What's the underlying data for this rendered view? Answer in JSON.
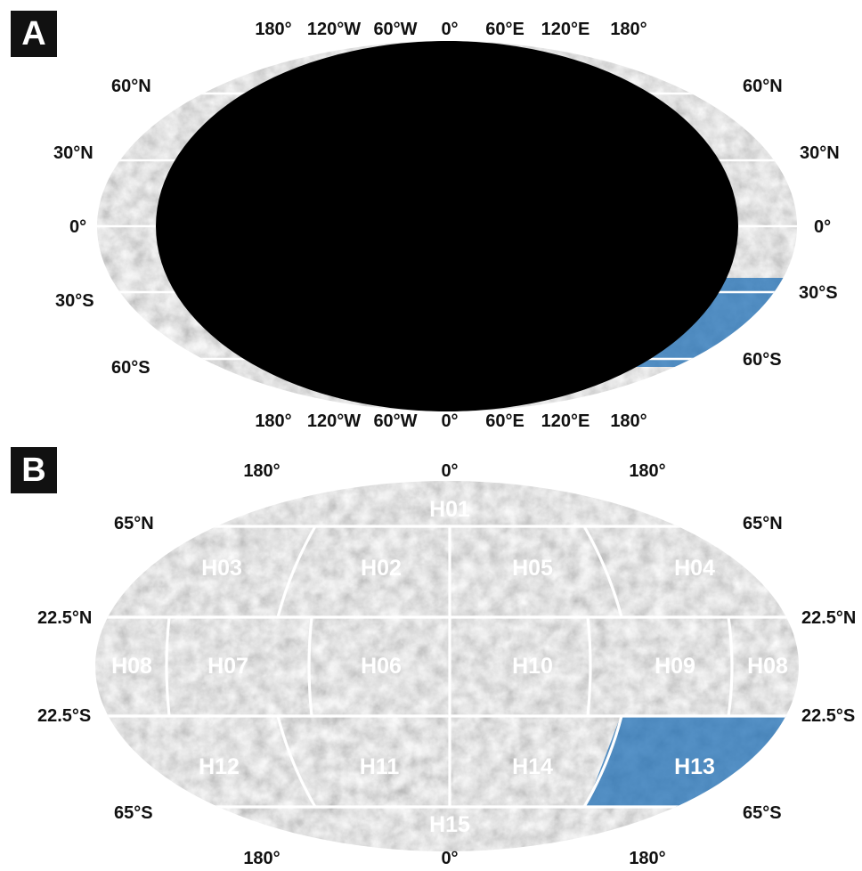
{
  "panel_a": {
    "badge": "A",
    "top_longitude_labels": [
      "180°",
      "120°W",
      "60°W",
      "0°",
      "60°E",
      "120°E",
      "180°"
    ],
    "bottom_longitude_labels": [
      "180°",
      "120°W",
      "60°W",
      "0°",
      "60°E",
      "120°E",
      "180°"
    ],
    "left_latitude_labels": [
      "60°N",
      "30°N",
      "0°",
      "30°S",
      "60°S"
    ],
    "right_latitude_labels": [
      "60°N",
      "30°N",
      "0°",
      "30°S",
      "60°S"
    ],
    "highlight_color": "#1f6fb5"
  },
  "panel_b": {
    "badge": "B",
    "top_longitude_labels": [
      "180°",
      "0°",
      "180°"
    ],
    "bottom_longitude_labels": [
      "180°",
      "0°",
      "180°"
    ],
    "left_latitude_labels": [
      "65°N",
      "22.5°N",
      "22.5°S",
      "65°S"
    ],
    "right_latitude_labels": [
      "65°N",
      "22.5°N",
      "22.5°S",
      "65°S"
    ],
    "quadrangles": {
      "h01": "H01",
      "h02": "H02",
      "h03": "H03",
      "h04": "H04",
      "h05": "H05",
      "h06": "H06",
      "h07": "H07",
      "h08_left": "H08",
      "h08_right": "H08",
      "h09": "H09",
      "h10": "H10",
      "h11": "H11",
      "h12": "H12",
      "h13": "H13",
      "h14": "H14",
      "h15": "H15"
    },
    "highlight_color": "#1f6fb5"
  }
}
